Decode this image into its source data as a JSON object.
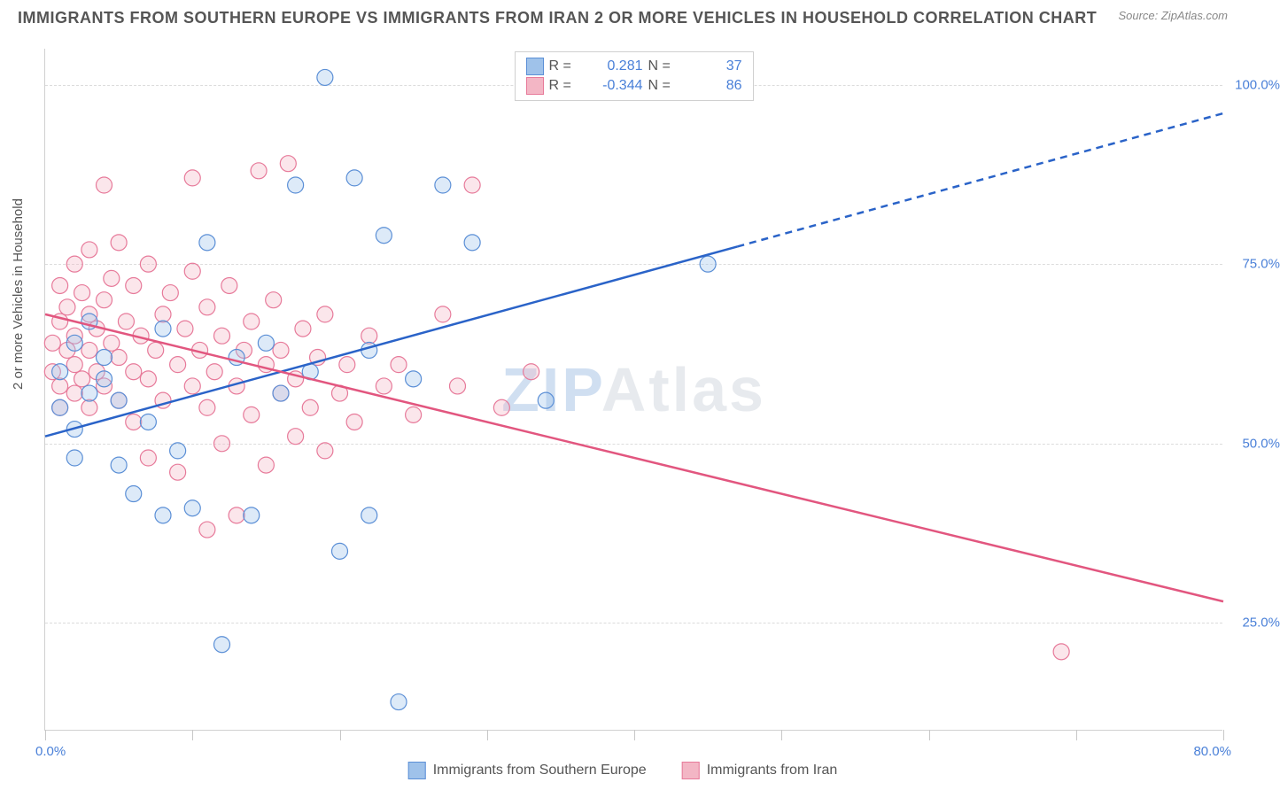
{
  "title": "IMMIGRANTS FROM SOUTHERN EUROPE VS IMMIGRANTS FROM IRAN 2 OR MORE VEHICLES IN HOUSEHOLD CORRELATION CHART",
  "source": "Source: ZipAtlas.com",
  "y_label": "2 or more Vehicles in Household",
  "watermark_a": "ZIP",
  "watermark_b": "Atlas",
  "chart": {
    "type": "scatter",
    "background_color": "#ffffff",
    "grid_color": "#dcdcdc",
    "axis_color": "#d0d0d0",
    "label_color": "#555555",
    "tick_color": "#4a80d8",
    "xlim": [
      0,
      80
    ],
    "ylim": [
      10,
      105
    ],
    "x_ticks": [
      0,
      10,
      20,
      30,
      40,
      50,
      60,
      70,
      80
    ],
    "x_tick_labels_shown": {
      "0": "0.0%",
      "80": "80.0%"
    },
    "y_ticks": [
      25,
      50,
      75,
      100
    ],
    "y_tick_labels": [
      "25.0%",
      "50.0%",
      "75.0%",
      "100.0%"
    ],
    "marker_radius": 9,
    "line_width": 2.5,
    "series": [
      {
        "name": "Immigrants from Southern Europe",
        "fill_color": "#9fc2ea",
        "stroke_color": "#5b8fd6",
        "line_color": "#2a63c8",
        "R": "0.281",
        "N": "37",
        "trend": {
          "x1": 0,
          "y1": 51,
          "x2": 80,
          "y2": 96,
          "solid_until_x": 47
        },
        "points": [
          [
            1,
            60
          ],
          [
            1,
            55
          ],
          [
            2,
            52
          ],
          [
            2,
            48
          ],
          [
            3,
            57
          ],
          [
            3,
            67
          ],
          [
            4,
            59
          ],
          [
            4,
            62
          ],
          [
            5,
            47
          ],
          [
            5,
            56
          ],
          [
            6,
            43
          ],
          [
            7,
            53
          ],
          [
            8,
            66
          ],
          [
            9,
            49
          ],
          [
            10,
            41
          ],
          [
            11,
            78
          ],
          [
            12,
            22
          ],
          [
            13,
            62
          ],
          [
            8,
            40
          ],
          [
            15,
            64
          ],
          [
            16,
            57
          ],
          [
            17,
            86
          ],
          [
            18,
            60
          ],
          [
            19,
            101
          ],
          [
            20,
            35
          ],
          [
            21,
            87
          ],
          [
            22,
            63
          ],
          [
            23,
            79
          ],
          [
            25,
            59
          ],
          [
            27,
            86
          ],
          [
            24,
            14
          ],
          [
            29,
            78
          ],
          [
            22,
            40
          ],
          [
            34,
            56
          ],
          [
            14,
            40
          ],
          [
            45,
            75
          ],
          [
            2,
            64
          ]
        ]
      },
      {
        "name": "Immigrants from Iran",
        "fill_color": "#f3b6c5",
        "stroke_color": "#e77a9a",
        "line_color": "#e2567f",
        "R": "-0.344",
        "N": "86",
        "trend": {
          "x1": 0,
          "y1": 68,
          "x2": 80,
          "y2": 28,
          "solid_until_x": 80
        },
        "points": [
          [
            0.5,
            64
          ],
          [
            0.5,
            60
          ],
          [
            1,
            67
          ],
          [
            1,
            58
          ],
          [
            1,
            72
          ],
          [
            1,
            55
          ],
          [
            1.5,
            63
          ],
          [
            1.5,
            69
          ],
          [
            2,
            61
          ],
          [
            2,
            75
          ],
          [
            2,
            57
          ],
          [
            2,
            65
          ],
          [
            2.5,
            71
          ],
          [
            2.5,
            59
          ],
          [
            3,
            68
          ],
          [
            3,
            63
          ],
          [
            3,
            77
          ],
          [
            3,
            55
          ],
          [
            3.5,
            66
          ],
          [
            3.5,
            60
          ],
          [
            4,
            70
          ],
          [
            4,
            58
          ],
          [
            4,
            86
          ],
          [
            4.5,
            64
          ],
          [
            4.5,
            73
          ],
          [
            5,
            62
          ],
          [
            5,
            56
          ],
          [
            5,
            78
          ],
          [
            5.5,
            67
          ],
          [
            6,
            60
          ],
          [
            6,
            72
          ],
          [
            6,
            53
          ],
          [
            6.5,
            65
          ],
          [
            7,
            59
          ],
          [
            7,
            75
          ],
          [
            7,
            48
          ],
          [
            7.5,
            63
          ],
          [
            8,
            68
          ],
          [
            8,
            56
          ],
          [
            8.5,
            71
          ],
          [
            9,
            61
          ],
          [
            9,
            46
          ],
          [
            9.5,
            66
          ],
          [
            10,
            58
          ],
          [
            10,
            74
          ],
          [
            10,
            87
          ],
          [
            10.5,
            63
          ],
          [
            11,
            55
          ],
          [
            11,
            69
          ],
          [
            11.5,
            60
          ],
          [
            12,
            65
          ],
          [
            12,
            50
          ],
          [
            12.5,
            72
          ],
          [
            13,
            58
          ],
          [
            13,
            40
          ],
          [
            13.5,
            63
          ],
          [
            14,
            67
          ],
          [
            14,
            54
          ],
          [
            14.5,
            88
          ],
          [
            15,
            61
          ],
          [
            15,
            47
          ],
          [
            15.5,
            70
          ],
          [
            16,
            57
          ],
          [
            16,
            63
          ],
          [
            16.5,
            89
          ],
          [
            17,
            59
          ],
          [
            17,
            51
          ],
          [
            17.5,
            66
          ],
          [
            18,
            55
          ],
          [
            18.5,
            62
          ],
          [
            19,
            49
          ],
          [
            19,
            68
          ],
          [
            20,
            57
          ],
          [
            20.5,
            61
          ],
          [
            21,
            53
          ],
          [
            22,
            65
          ],
          [
            23,
            58
          ],
          [
            24,
            61
          ],
          [
            25,
            54
          ],
          [
            27,
            68
          ],
          [
            28,
            58
          ],
          [
            29,
            86
          ],
          [
            31,
            55
          ],
          [
            33,
            60
          ],
          [
            69,
            21
          ],
          [
            11,
            38
          ]
        ]
      }
    ]
  },
  "stats_labels": {
    "R": "R =",
    "N": "N ="
  }
}
